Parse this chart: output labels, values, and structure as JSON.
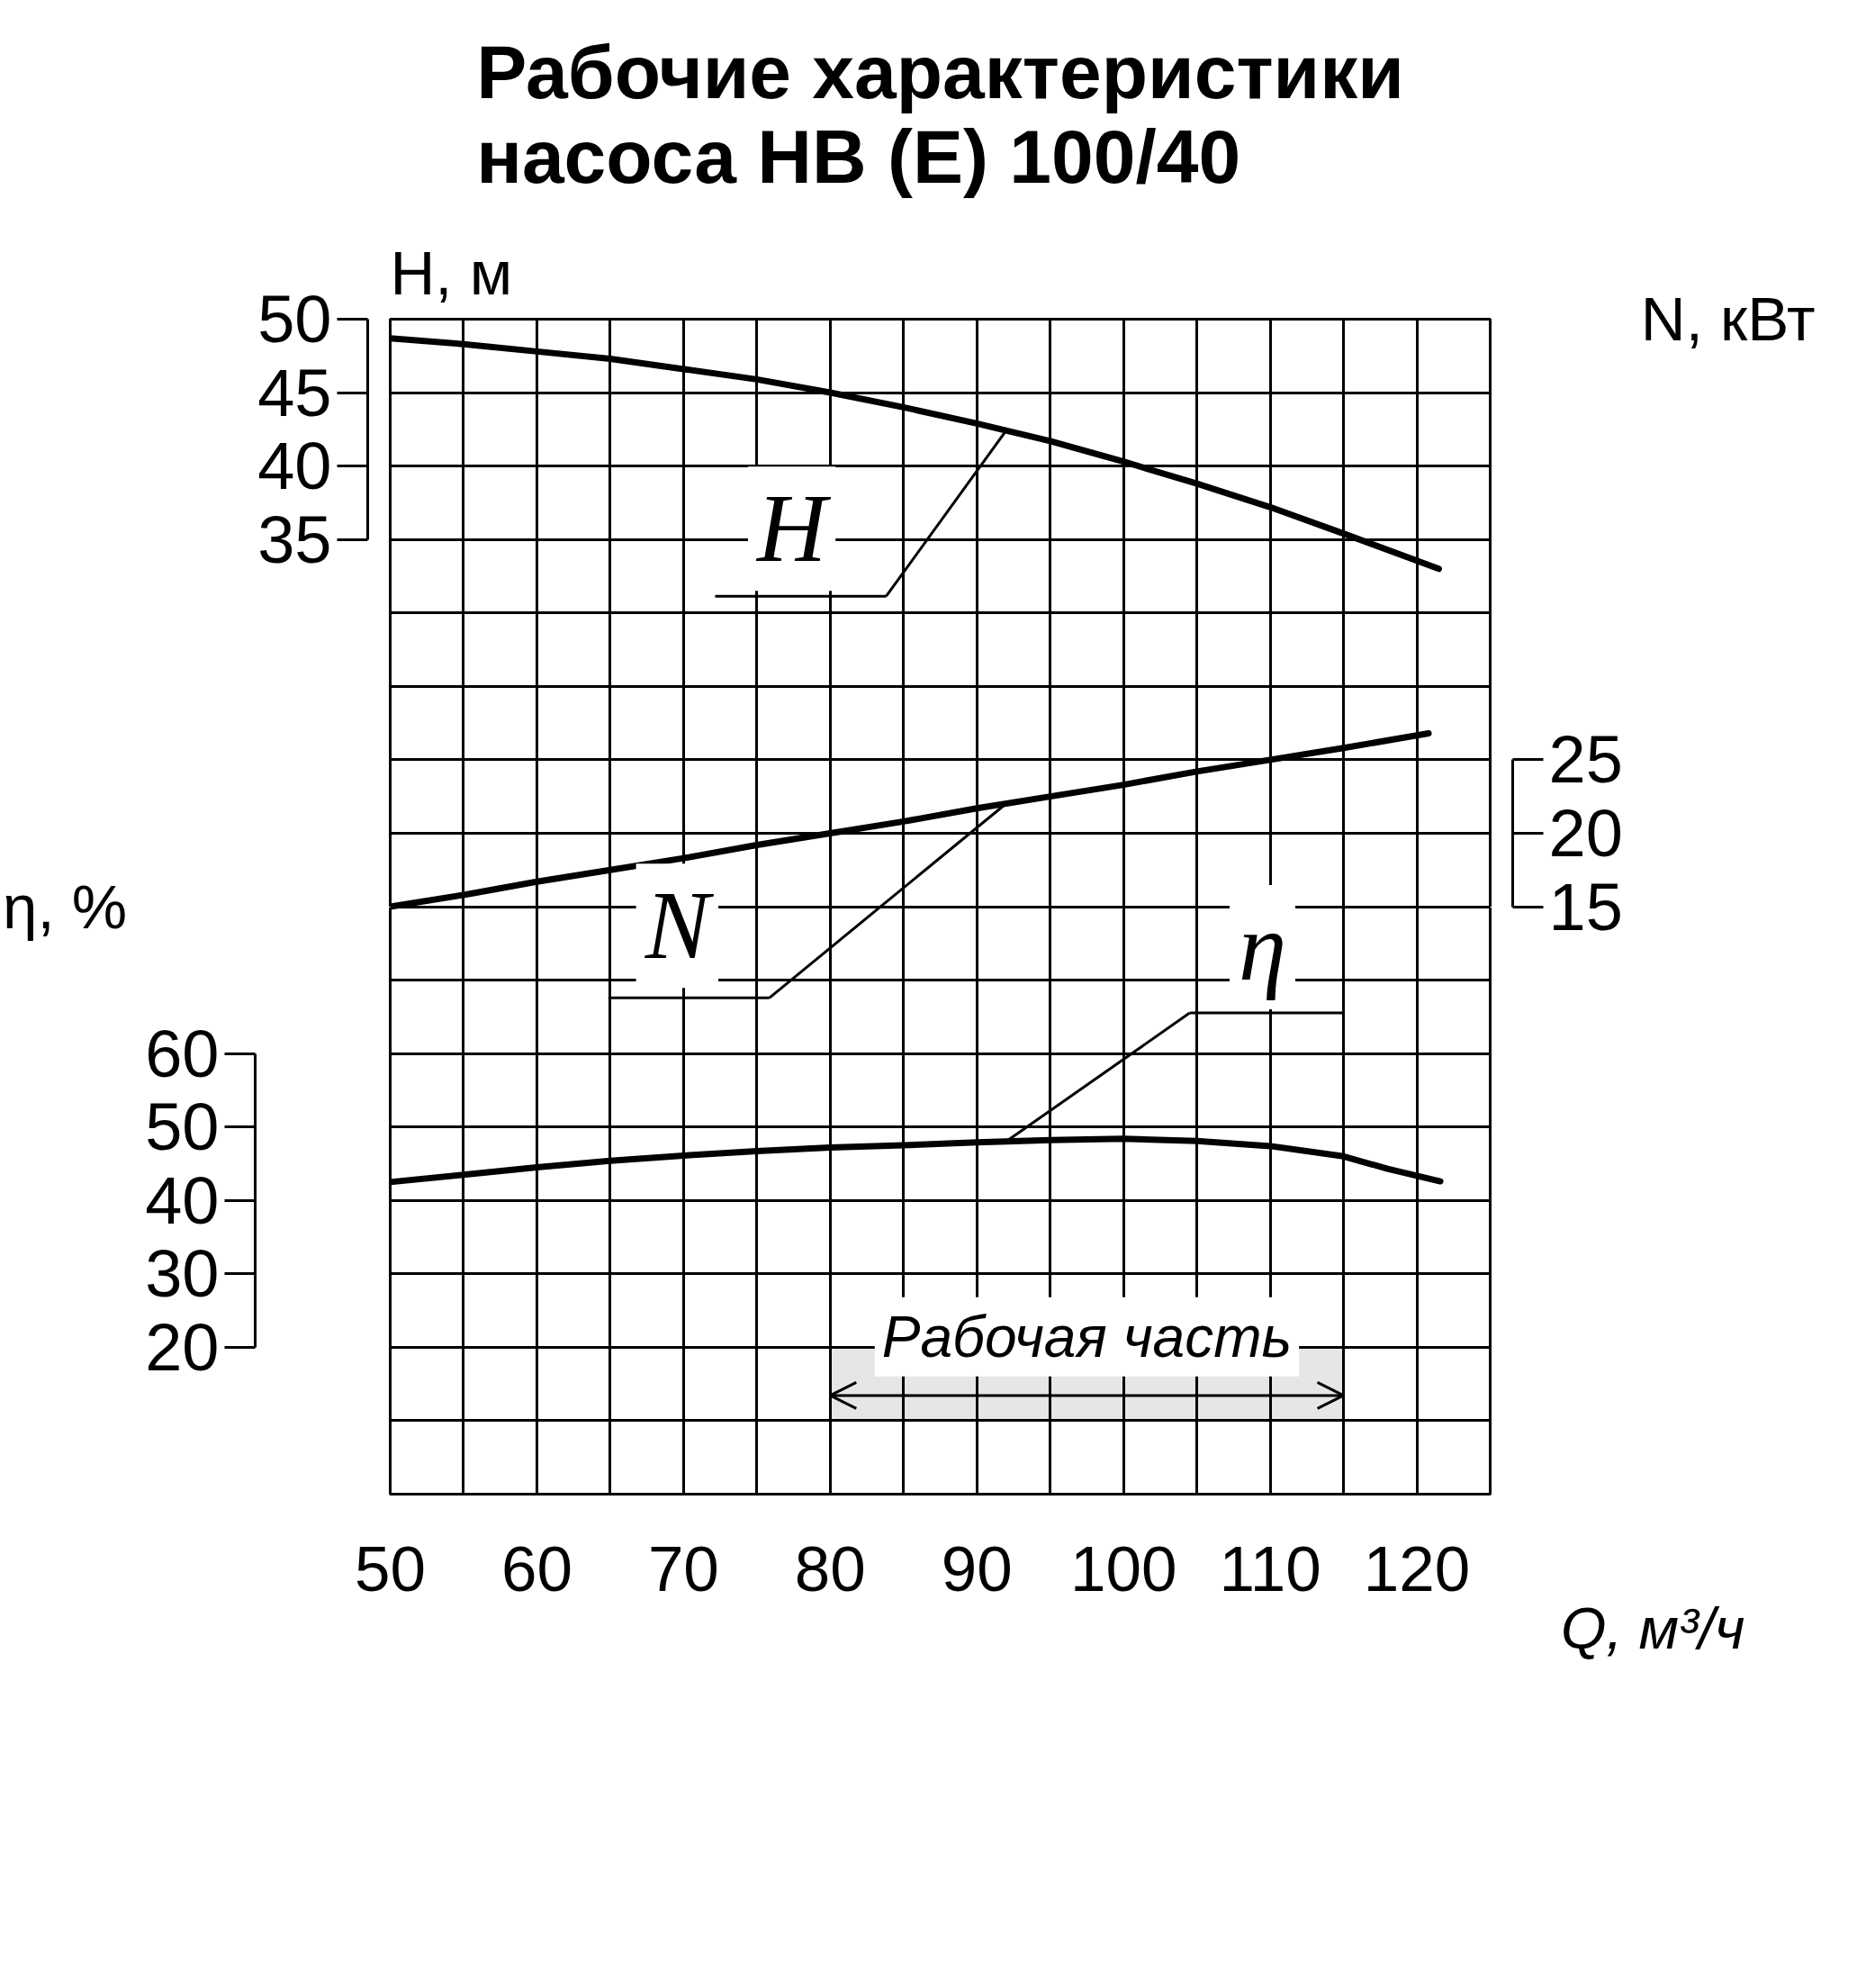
{
  "chart_data": {
    "type": "line",
    "title": "Рабочие характеристики\nнасоса НВ (Е) 100/40",
    "xlabel": "Q, м³/ч",
    "ylabel": "H, м",
    "y2label": "N, кВт",
    "y3label": "η, %",
    "xlim": [
      50,
      125
    ],
    "xticks": [
      50,
      {
        "value": 55,
        "label": null
      },
      60,
      {
        "value": 65,
        "label": null
      },
      70,
      {
        "value": 75,
        "label": null
      },
      80,
      {
        "value": 85,
        "label": null
      },
      90,
      {
        "value": 95,
        "label": null
      },
      100,
      {
        "value": 105,
        "label": null
      },
      110,
      {
        "value": 115,
        "label": null
      },
      120,
      {
        "value": 125,
        "label": null
      }
    ],
    "ylim": [
      -30,
      50
    ],
    "yticks": [
      35,
      40,
      45,
      50
    ],
    "y2lim": [
      -25,
      55
    ],
    "y2ticks": [
      15,
      20,
      25
    ],
    "y3lim": [
      0,
      160
    ],
    "y3ticks": [
      20,
      30,
      40,
      50,
      60
    ],
    "series": [
      {
        "name": "η",
        "color": "#000000",
        "axis": "y3",
        "x": [
          50,
          55,
          60,
          65,
          70,
          75,
          80,
          85,
          90,
          95,
          100,
          105,
          110,
          115,
          118,
          121.6
        ],
        "values": [
          42.5,
          43.5,
          44.5,
          45.4,
          46.1,
          46.7,
          47.2,
          47.5,
          47.9,
          48.2,
          48.4,
          48.1,
          47.4,
          46.0,
          44.3,
          42.6
        ]
      },
      {
        "name": "N",
        "color": "#000000",
        "axis": "y2",
        "x": [
          50,
          55,
          60,
          65,
          70,
          75,
          80,
          85,
          90,
          95,
          100,
          105,
          110,
          115,
          120.8
        ],
        "values": [
          15.0,
          15.8,
          16.7,
          17.5,
          18.3,
          19.2,
          20.0,
          20.8,
          21.7,
          22.5,
          23.3,
          24.2,
          25.0,
          25.8,
          26.8
        ]
      },
      {
        "name": "H",
        "color": "#000000",
        "axis": "y",
        "x": [
          50,
          55,
          60,
          65,
          70,
          75,
          80,
          85,
          90,
          95,
          100,
          105,
          110,
          115,
          121.5
        ],
        "values": [
          48.7,
          48.3,
          47.8,
          47.3,
          46.6,
          45.9,
          45.0,
          44.0,
          42.9,
          41.7,
          40.3,
          38.8,
          37.2,
          35.4,
          33.0
        ]
      }
    ],
    "bands": [
      {
        "axis": "x",
        "from": 80,
        "to": 115,
        "label": "Рабочая часть",
        "color": "#e6e6e6"
      }
    ],
    "grid": true,
    "legend": "center",
    "line_style": "solid"
  }
}
